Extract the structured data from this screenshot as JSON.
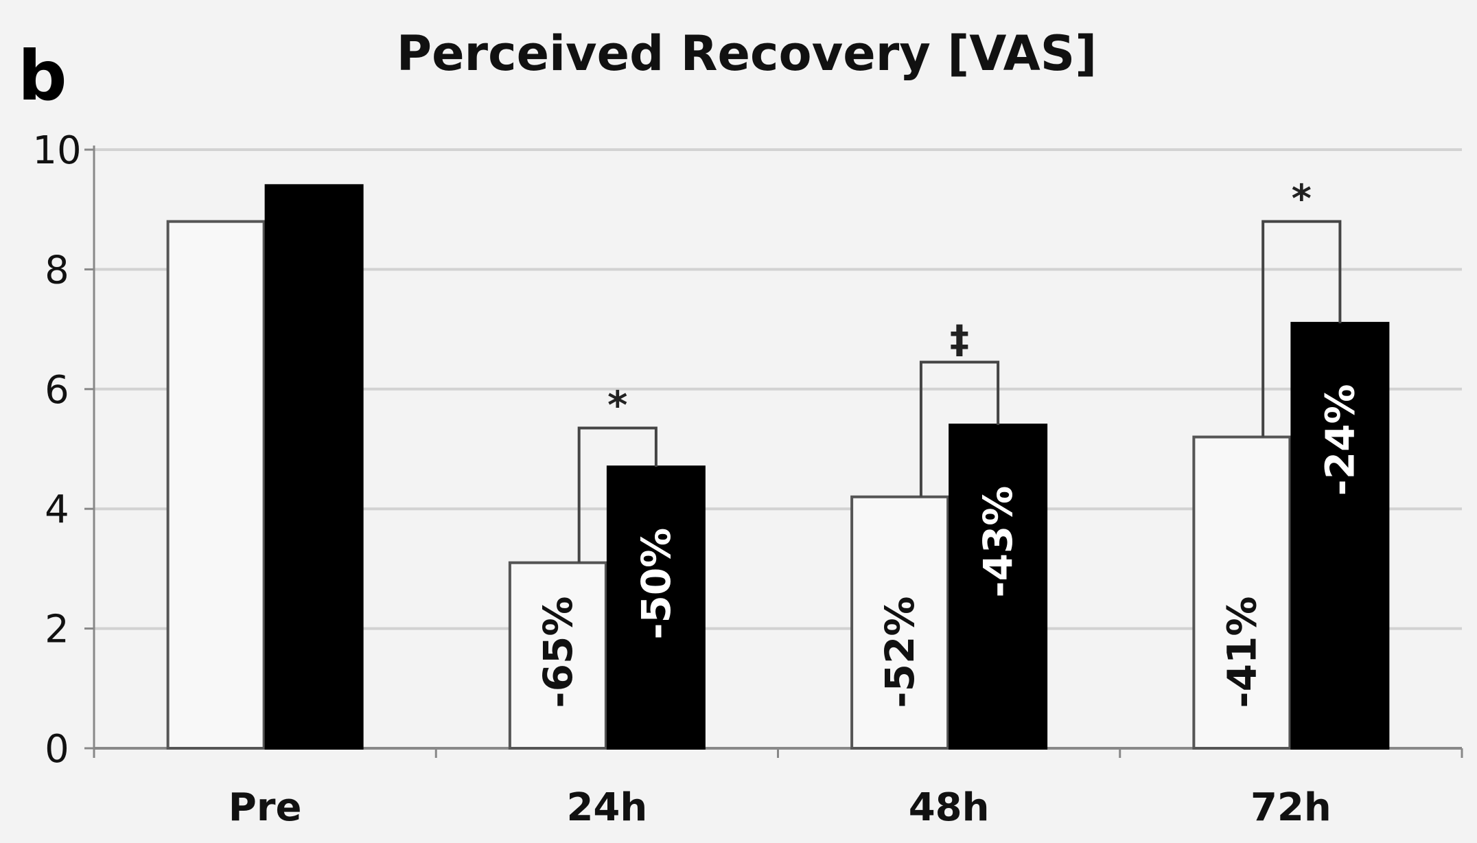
{
  "panel_label": "b",
  "chart_data": {
    "type": "bar",
    "title": "Perceived Recovery [VAS]",
    "xlabel": "",
    "ylabel": "",
    "ylim": [
      0,
      10
    ],
    "yticks": [
      0,
      2,
      4,
      6,
      8,
      10
    ],
    "grid": true,
    "legend": "none",
    "categories": [
      "Pre",
      "24h",
      "48h",
      "72h"
    ],
    "series": [
      {
        "fill": "#f8f8f8",
        "stroke": "#555555",
        "label_color": "#111111",
        "values": [
          8.8,
          3.1,
          4.2,
          5.2
        ],
        "data_labels": [
          "",
          "-65%",
          "-52%",
          "-41%"
        ]
      },
      {
        "fill": "#000000",
        "stroke": "#000000",
        "label_color": "#ffffff",
        "values": [
          9.4,
          4.7,
          5.4,
          7.1
        ],
        "data_labels": [
          "",
          "-50%",
          "-43%",
          "-24%"
        ]
      }
    ],
    "significance": [
      {
        "category": "24h",
        "symbol": "*",
        "bracket_top": 5.35
      },
      {
        "category": "48h",
        "symbol": "‡",
        "bracket_top": 6.45
      },
      {
        "category": "72h",
        "symbol": "*",
        "bracket_top": 8.8
      }
    ],
    "colors": {
      "background": "#f3f3f3",
      "gridline": "#d2d2d2",
      "axis": "#888888"
    }
  }
}
